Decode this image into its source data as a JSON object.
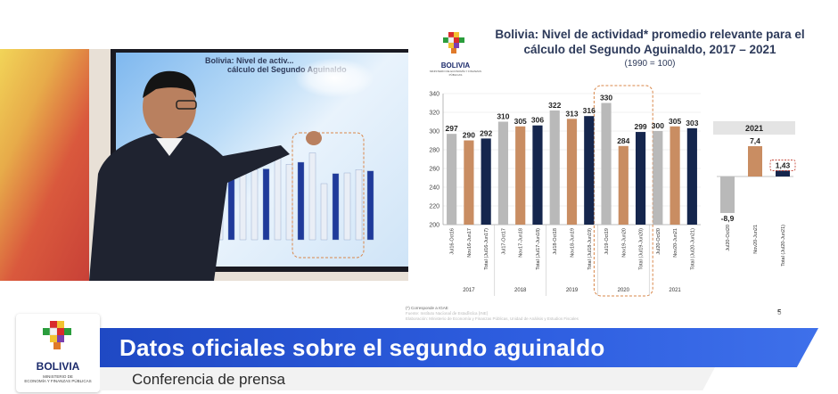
{
  "slide": {
    "title_line1": "Bolivia: Nivel de actividad* promedio relevante para el",
    "title_line2": "cálculo del Segundo Aguinaldo, 2017 – 2021",
    "subtitle": "(1990 = 100)",
    "logo_name": "BOLIVIA",
    "logo_small": "MINISTERIO DE ECONOMÍA Y FINANZAS PÚBLICAS",
    "source_lines": [
      "(*) Corresponde a IGAE",
      "Fuente: Instituto Nacional de Estadística (INE)",
      "Elaboración: Ministerio de Economía y Finanzas Públicas, Unidad de Análisis y Estudios Fiscales"
    ],
    "page_number": "5"
  },
  "screen_text": {
    "title_line1": "Bolivia: Nivel de activ...",
    "title_line2": "cálculo del Segundo Aguinaldo"
  },
  "banner": {
    "headline": "Datos oficiales sobre el segundo aguinaldo",
    "subline": "Conferencia de prensa",
    "logo_name": "BOLIVIA",
    "logo_small_1": "MINISTERIO DE",
    "logo_small_2": "ECONOMÍA Y FINANZAS PÚBLICAS"
  },
  "colors": {
    "gray_bar": "#b9b9b9",
    "copper_bar": "#c98d62",
    "navy_bar": "#15264d",
    "banner_blue": "#2552d6",
    "dashed_box": "#d9874a"
  },
  "chart_data": [
    {
      "type": "bar",
      "ylim": [
        200,
        340
      ],
      "yticks": [
        200,
        220,
        240,
        260,
        280,
        300,
        320,
        340
      ],
      "groups": [
        "2017",
        "2018",
        "2019",
        "2020",
        "2021"
      ],
      "categories": [
        "Jul16-Oct16",
        "Nov16-Jun17",
        "Total (Jul16-Jun17)",
        "Jul17-Oct17",
        "Nov17-Jun18",
        "Total (Jul17-Jun18)",
        "Jul18-Oct18",
        "Nov18-Jun19",
        "Total (Jul18-Jun19)",
        "Jul19-Oct19",
        "Nov19-Jun20",
        "Total (Jul19-Jun20)",
        "Jul20-Oct20",
        "Nov20-Jun21",
        "Total (Jul20-Jun21)"
      ],
      "values": [
        297,
        290,
        292,
        310,
        305,
        306,
        322,
        313,
        316,
        330,
        284,
        299,
        300,
        305,
        303
      ],
      "bar_kinds": [
        "gray",
        "copper",
        "navy",
        "gray",
        "copper",
        "navy",
        "gray",
        "copper",
        "navy",
        "gray",
        "copper",
        "navy",
        "gray",
        "copper",
        "navy"
      ]
    },
    {
      "type": "bar",
      "title": "2021",
      "categories": [
        "Jul20-Oct20",
        "Nov20-Jun21",
        "Total (Jul20-Jun21)"
      ],
      "values": [
        -8.9,
        7.4,
        1.43
      ],
      "labels": [
        "-8,9",
        "7,4",
        "1,43"
      ],
      "bar_kinds": [
        "gray",
        "copper",
        "navy"
      ]
    }
  ]
}
